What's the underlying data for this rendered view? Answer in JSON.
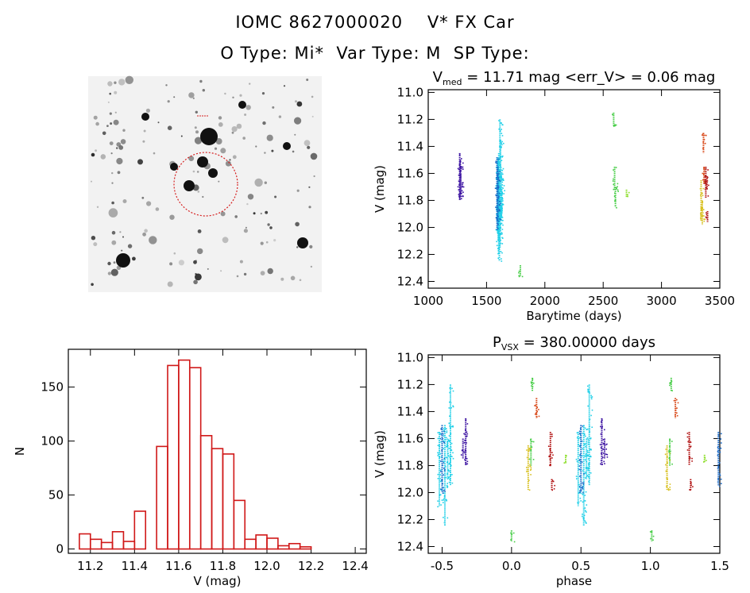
{
  "header": {
    "line1": "IOMC 8627000020    V* FX Car",
    "line2": "O Type: Mi*  Var Type: M  SP Type:"
  },
  "thumbnail": {
    "aperture_color": "#d62020"
  },
  "colors": {
    "histogram": "#d01818",
    "series": [
      "#3a10a0",
      "#22d0e8",
      "#20b8d8",
      "#1a6ac8",
      "#44cc44",
      "#88dd22",
      "#d8c020",
      "#e8a010",
      "#d84818",
      "#b01010"
    ]
  },
  "chart_data": [
    {
      "id": "lightcurve",
      "type": "scatter",
      "title": "V",
      "title_sub": "med",
      "title_rest": " = 11.71 mag <err_V> = 0.06 mag",
      "xlabel": "Barytime (days)",
      "ylabel": "V (mag)",
      "xlim": [
        1000,
        3500
      ],
      "ylim": [
        12.45,
        10.98
      ],
      "xticks": [
        1000,
        1500,
        2000,
        2500,
        3000,
        3500
      ],
      "yticks": [
        11.0,
        11.2,
        11.4,
        11.6,
        11.8,
        12.0,
        12.2,
        12.4
      ],
      "series": [
        {
          "name": "s1",
          "color": "#3a10a0",
          "x": [
            1270,
            1275,
            1280
          ],
          "y_min": [
            11.45,
            11.5,
            11.6
          ],
          "y_max": [
            11.8,
            11.78,
            11.75
          ]
        },
        {
          "name": "s2",
          "color": "#22d0e8",
          "x": [
            1595,
            1600,
            1605,
            1610,
            1615,
            1620,
            1625,
            1630
          ],
          "y_min": [
            11.55,
            11.5,
            11.45,
            11.6,
            11.2,
            11.35,
            11.6,
            11.7
          ],
          "y_max": [
            12.05,
            12.1,
            12.2,
            12.25,
            12.15,
            11.95,
            11.95,
            11.9
          ]
        },
        {
          "name": "s3",
          "color": "#1a6ac8",
          "x": [
            1590,
            1597
          ],
          "y_min": [
            11.48,
            11.55
          ],
          "y_max": [
            12.02,
            11.95
          ]
        },
        {
          "name": "s4",
          "color": "#44cc44",
          "x": [
            1790,
            2590,
            2598,
            2605
          ],
          "y_min": [
            12.28,
            11.15,
            11.55,
            11.7
          ],
          "y_max": [
            12.36,
            11.25,
            11.72,
            11.85
          ]
        },
        {
          "name": "s5",
          "color": "#88dd22",
          "x": [
            2700
          ],
          "y_min": [
            11.72
          ],
          "y_max": [
            11.78
          ]
        },
        {
          "name": "s6",
          "color": "#d8c020",
          "x": [
            3340,
            3350
          ],
          "y_min": [
            11.65,
            11.8
          ],
          "y_max": [
            11.95,
            11.98
          ]
        },
        {
          "name": "s7",
          "color": "#d84818",
          "x": [
            3360,
            3365
          ],
          "y_min": [
            11.3,
            11.55
          ],
          "y_max": [
            11.45,
            11.68
          ]
        },
        {
          "name": "s8",
          "color": "#b01010",
          "x": [
            3380,
            3390,
            3395
          ],
          "y_min": [
            11.55,
            11.62,
            11.88
          ],
          "y_max": [
            11.78,
            11.72,
            11.96
          ]
        }
      ]
    },
    {
      "id": "histogram",
      "type": "bar",
      "xlabel": "V (mag)",
      "ylabel": "N",
      "xlim": [
        11.1,
        12.45
      ],
      "ylim": [
        -4,
        185
      ],
      "xticks": [
        11.2,
        11.4,
        11.6,
        11.8,
        12.0,
        12.2,
        12.4
      ],
      "yticks": [
        0,
        50,
        100,
        150
      ],
      "bin_width": 0.05,
      "bin_starts": [
        11.15,
        11.2,
        11.25,
        11.3,
        11.35,
        11.4,
        11.45,
        11.5,
        11.55,
        11.6,
        11.65,
        11.7,
        11.75,
        11.8,
        11.85,
        11.9,
        11.95,
        12.0,
        12.05,
        12.1,
        12.15,
        12.2,
        12.25,
        12.3,
        12.35
      ],
      "values": [
        14,
        9,
        6,
        16,
        7,
        35,
        0,
        95,
        170,
        175,
        168,
        105,
        93,
        88,
        45,
        9,
        13,
        10,
        3,
        5,
        2,
        0,
        0,
        0,
        0
      ]
    },
    {
      "id": "phased",
      "type": "scatter",
      "title": "P",
      "title_sub": "VSX",
      "title_rest": " = 380.00000 days",
      "xlabel": "phase",
      "ylabel": "V (mag)",
      "xlim": [
        -0.6,
        1.5
      ],
      "ylim": [
        12.45,
        10.98
      ],
      "xticks": [
        -0.5,
        0.0,
        0.5,
        1.0,
        1.5
      ],
      "yticks": [
        11.0,
        11.2,
        11.4,
        11.6,
        11.8,
        12.0,
        12.2,
        12.4
      ],
      "series": [
        {
          "name": "s1",
          "color": "#3a10a0",
          "x": [
            -0.33,
            -0.35,
            0.65,
            0.67
          ],
          "y_min": [
            11.45,
            11.6,
            11.45,
            11.6
          ],
          "y_max": [
            11.8,
            11.75,
            11.8,
            11.75
          ]
        },
        {
          "name": "s2",
          "color": "#22d0e8",
          "x": [
            -0.52,
            -0.48,
            -0.44,
            -0.46,
            0.48,
            0.52,
            0.56,
            0.54
          ],
          "y_min": [
            11.55,
            11.5,
            11.2,
            11.6,
            11.55,
            11.5,
            11.2,
            11.6
          ],
          "y_max": [
            12.1,
            12.25,
            11.95,
            11.9,
            12.1,
            12.25,
            11.95,
            11.9
          ]
        },
        {
          "name": "s3",
          "color": "#1a6ac8",
          "x": [
            -0.5,
            0.5,
            1.49
          ],
          "y_min": [
            11.5,
            11.5,
            11.55
          ],
          "y_max": [
            12.0,
            12.0,
            11.95
          ]
        },
        {
          "name": "s4",
          "color": "#44cc44",
          "x": [
            0.0,
            0.15,
            0.14,
            1.01,
            1.15,
            1.14
          ],
          "y_min": [
            12.28,
            11.15,
            11.6,
            12.28,
            11.15,
            11.6
          ],
          "y_max": [
            12.36,
            11.25,
            11.8,
            12.36,
            11.25,
            11.8
          ]
        },
        {
          "name": "s5",
          "color": "#88dd22",
          "x": [
            0.39,
            1.39
          ],
          "y_min": [
            11.72,
            11.72
          ],
          "y_max": [
            11.78,
            11.78
          ]
        },
        {
          "name": "s6",
          "color": "#d8c020",
          "x": [
            0.12,
            1.12
          ],
          "y_min": [
            11.65,
            11.65
          ],
          "y_max": [
            11.98,
            11.98
          ]
        },
        {
          "name": "s7",
          "color": "#d84818",
          "x": [
            0.18,
            1.18
          ],
          "y_min": [
            11.3,
            11.3
          ],
          "y_max": [
            11.45,
            11.45
          ]
        },
        {
          "name": "s8",
          "color": "#b01010",
          "x": [
            0.28,
            0.29,
            1.28,
            1.29
          ],
          "y_min": [
            11.55,
            11.9,
            11.55,
            11.9
          ],
          "y_max": [
            11.8,
            11.98,
            11.8,
            11.98
          ]
        }
      ]
    }
  ]
}
